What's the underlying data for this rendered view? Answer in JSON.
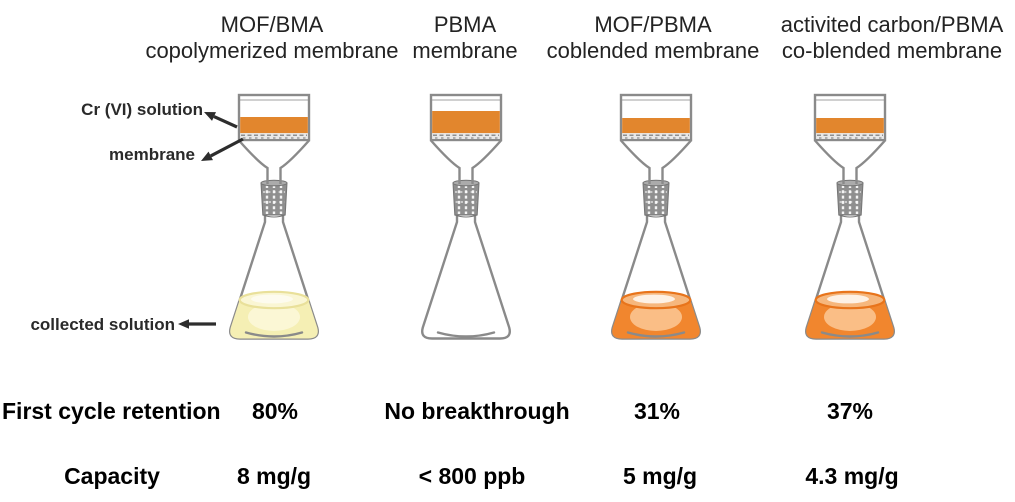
{
  "columns": [
    {
      "title1": "MOF/BMA",
      "title2": "copolymerized membrane",
      "retention": "80%",
      "capacity": "8 mg/g",
      "collected": "yellow"
    },
    {
      "title1": "PBMA",
      "title2": "membrane",
      "retention": "No breakthrough",
      "capacity": "< 800 ppb",
      "collected": "empty"
    },
    {
      "title1": "MOF/PBMA",
      "title2": "coblended membrane",
      "retention": "31%",
      "capacity": "5 mg/g",
      "collected": "orange"
    },
    {
      "title1": "activited carbon/PBMA",
      "title2": "co-blended membrane",
      "retention": "37%",
      "capacity": "4.3 mg/g",
      "collected": "orange"
    }
  ],
  "annotations": {
    "feed_label": "Cr (VI) solution",
    "membrane_label": "membrane",
    "collected_label": "collected solution"
  },
  "rows": {
    "retention_label": "First cycle retention",
    "capacity_label": "Capacity"
  },
  "colors": {
    "feed_orange": "#e2862d",
    "outline_gray": "#8a8a8a",
    "joint_gray": "#8f8f8f",
    "membrane_gray": "#e8e8e8",
    "collected_orange_body": "#f1862e",
    "collected_orange_surface": "#f6b77d",
    "collected_orange_rim": "#e8741b",
    "collected_yellow_body": "#f5efb4",
    "collected_yellow_surface": "#faf6d4",
    "collected_yellow_rim": "#e9e09a",
    "arrow_black": "#2d2d2d",
    "text_black": "#000000"
  }
}
